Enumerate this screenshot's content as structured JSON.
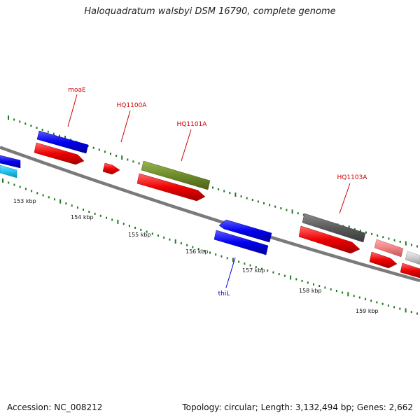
{
  "title": "Haloquadratum walsbyi DSM 16790, complete genome",
  "footer": {
    "accession": "Accession: NC_008212",
    "topology": "Topology: circular; Length: 3,132,494 bp; Genes: 2,662"
  },
  "colors": {
    "background": "#ffffff",
    "backbone": "#7a7a7a",
    "tick": "#1f7a1f",
    "forward_gene": "#ff0000",
    "reverse_gene": "#0000ff",
    "gene_label_forward": "#cc0000",
    "gene_label_reverse": "#0000cc",
    "olive_feature": "#6e8b2a",
    "grey_feature": "#5a5a5a",
    "light_red_feature": "#f08080",
    "cyan_feature": "#22c4ee",
    "light_grey_feature": "#cccccc"
  },
  "scale": {
    "labels": [
      "153 kbp",
      "154 kbp",
      "155 kbp",
      "156 kbp",
      "157 kbp",
      "158 kbp",
      "159 kbp"
    ]
  },
  "gene_labels": [
    {
      "name": "moaE",
      "strand": "forward"
    },
    {
      "name": "HQ1100A",
      "strand": "forward"
    },
    {
      "name": "HQ1101A",
      "strand": "forward"
    },
    {
      "name": "HQ1103A",
      "strand": "forward"
    },
    {
      "name": "thiL",
      "strand": "reverse"
    }
  ]
}
